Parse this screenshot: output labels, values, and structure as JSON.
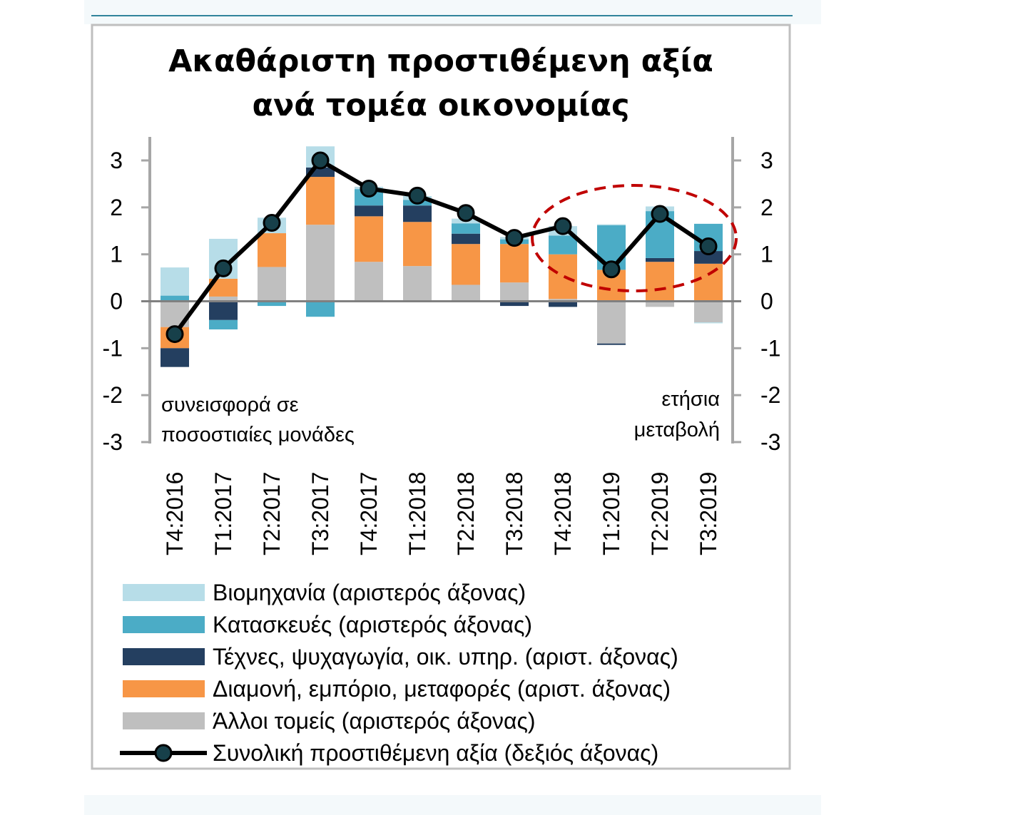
{
  "chart_data": {
    "type": "bar",
    "title_line1": "Ακαθάριστη προστιθέμενη αξία",
    "title_line2": "ανά τομέα οικονομίας",
    "left_note_line1": "συνεισφορά σε",
    "left_note_line2": "ποσοστιαίες μονάδες",
    "right_note_line1": "ετήσια",
    "right_note_line2": "μεταβολή",
    "ylim": [
      -3,
      3
    ],
    "yticks": [
      "3",
      "2",
      "1",
      "0",
      "-1",
      "-2",
      "-3"
    ],
    "categories": [
      "T4:2016",
      "T1:2017",
      "T2:2017",
      "T3:2017",
      "T4:2017",
      "T1:2018",
      "T2:2018",
      "T3:2018",
      "T4:2018",
      "T1:2019",
      "T2:2019",
      "T3:2019"
    ],
    "series": [
      {
        "name": "Άλλοι τομείς (αριστερός άξονας)",
        "color": "#bfbfbf",
        "values": [
          -0.55,
          0.1,
          0.73,
          1.63,
          0.84,
          0.75,
          0.35,
          0.4,
          0.05,
          -0.9,
          -0.12,
          -0.45
        ]
      },
      {
        "name": "Διαμονή, εμπόριο, μεταφορές (αριστ. άξονας)",
        "color": "#f79646",
        "values": [
          -0.45,
          0.38,
          0.72,
          1.02,
          0.97,
          0.94,
          0.87,
          0.82,
          0.95,
          0.67,
          0.84,
          0.8
        ]
      },
      {
        "name": "Τέχνες, ψυχαγωγία, οικ. υπηρ. (αριστ. άξονας)",
        "color": "#243f60",
        "values": [
          -0.4,
          -0.4,
          0.0,
          0.2,
          0.23,
          0.35,
          0.22,
          -0.1,
          -0.12,
          -0.03,
          0.08,
          0.27
        ]
      },
      {
        "name": "Κατασκευές (αριστερός άξονας)",
        "color": "#4bacc6",
        "values": [
          0.12,
          -0.2,
          -0.1,
          -0.33,
          0.35,
          0.12,
          0.22,
          0.1,
          0.4,
          0.95,
          1.0,
          0.58
        ]
      },
      {
        "name": "Βιομηχανία (αριστερός άξονας)",
        "color": "#b7dde8",
        "values": [
          0.6,
          0.85,
          0.33,
          0.45,
          0.05,
          0.08,
          0.1,
          0.05,
          0.2,
          0.02,
          0.1,
          -0.02
        ]
      }
    ],
    "line": {
      "name": "Συνολική προστιθέμενη αξία (δεξιός άξονας)",
      "color": "#000000",
      "marker_color": "#17404a",
      "values": [
        -0.7,
        0.7,
        1.67,
        3.0,
        2.4,
        2.25,
        1.88,
        1.35,
        1.6,
        0.68,
        1.86,
        1.17
      ]
    },
    "legend_order": [
      4,
      3,
      2,
      1,
      0
    ],
    "legend_placement": "bottom",
    "highlight_color": "#c00000"
  }
}
